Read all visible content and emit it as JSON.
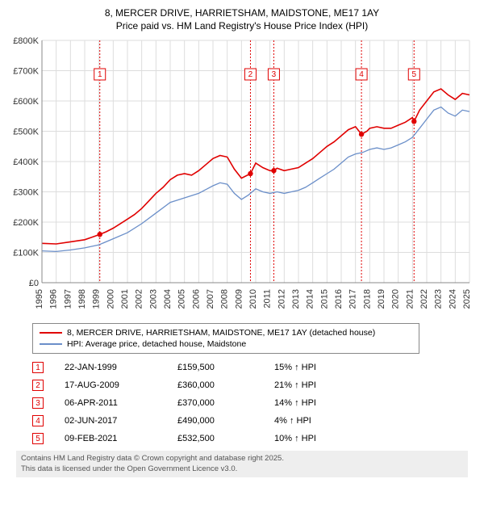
{
  "title": {
    "line1": "8, MERCER DRIVE, HARRIETSHAM, MAIDSTONE, ME17 1AY",
    "line2": "Price paid vs. HM Land Registry's House Price Index (HPI)"
  },
  "chart": {
    "type": "line",
    "background_color": "#ffffff",
    "grid_color": "#dddddd",
    "spine_color": "#888888",
    "x": {
      "years": [
        1995,
        1996,
        1997,
        1998,
        1999,
        2000,
        2001,
        2002,
        2003,
        2004,
        2005,
        2006,
        2007,
        2008,
        2009,
        2010,
        2011,
        2012,
        2013,
        2014,
        2015,
        2016,
        2017,
        2018,
        2019,
        2020,
        2021,
        2022,
        2023,
        2024,
        2025
      ],
      "label_fontsize": 11
    },
    "y": {
      "min": 0,
      "max": 800000,
      "tick_step": 100000,
      "tick_labels": [
        "£0",
        "£100K",
        "£200K",
        "£300K",
        "£400K",
        "£500K",
        "£600K",
        "£700K",
        "£800K"
      ],
      "label_fontsize": 11
    },
    "series_red": {
      "label": "8, MERCER DRIVE, HARRIETSHAM, MAIDSTONE, ME17 1AY (detached house)",
      "color": "#e00000",
      "line_width": 1.6,
      "points": [
        [
          1995,
          130000
        ],
        [
          1996,
          128000
        ],
        [
          1997,
          135000
        ],
        [
          1998,
          142000
        ],
        [
          1998.5,
          150000
        ],
        [
          1999.06,
          159500
        ],
        [
          1999.5,
          168000
        ],
        [
          2000,
          180000
        ],
        [
          2000.5,
          195000
        ],
        [
          2001,
          210000
        ],
        [
          2001.5,
          225000
        ],
        [
          2002,
          245000
        ],
        [
          2002.5,
          270000
        ],
        [
          2003,
          295000
        ],
        [
          2003.5,
          315000
        ],
        [
          2004,
          340000
        ],
        [
          2004.5,
          355000
        ],
        [
          2005,
          360000
        ],
        [
          2005.5,
          355000
        ],
        [
          2006,
          370000
        ],
        [
          2006.5,
          390000
        ],
        [
          2007,
          410000
        ],
        [
          2007.5,
          420000
        ],
        [
          2008,
          415000
        ],
        [
          2008.5,
          375000
        ],
        [
          2009,
          345000
        ],
        [
          2009.63,
          360000
        ],
        [
          2010,
          395000
        ],
        [
          2010.5,
          380000
        ],
        [
          2011,
          370000
        ],
        [
          2011.27,
          370000
        ],
        [
          2011.5,
          378000
        ],
        [
          2012,
          370000
        ],
        [
          2012.5,
          375000
        ],
        [
          2013,
          380000
        ],
        [
          2013.5,
          395000
        ],
        [
          2014,
          410000
        ],
        [
          2014.5,
          430000
        ],
        [
          2015,
          450000
        ],
        [
          2015.5,
          465000
        ],
        [
          2016,
          485000
        ],
        [
          2016.5,
          505000
        ],
        [
          2017,
          515000
        ],
        [
          2017.42,
          490000
        ],
        [
          2017.8,
          500000
        ],
        [
          2018,
          510000
        ],
        [
          2018.5,
          515000
        ],
        [
          2019,
          510000
        ],
        [
          2019.5,
          510000
        ],
        [
          2020,
          520000
        ],
        [
          2020.5,
          530000
        ],
        [
          2021,
          545000
        ],
        [
          2021.11,
          532500
        ],
        [
          2021.5,
          570000
        ],
        [
          2022,
          600000
        ],
        [
          2022.5,
          630000
        ],
        [
          2023,
          640000
        ],
        [
          2023.5,
          620000
        ],
        [
          2024,
          605000
        ],
        [
          2024.5,
          625000
        ],
        [
          2025,
          620000
        ]
      ]
    },
    "series_blue": {
      "label": "HPI: Average price, detached house, Maidstone",
      "color": "#6b8fc9",
      "line_width": 1.3,
      "points": [
        [
          1995,
          105000
        ],
        [
          1996,
          103000
        ],
        [
          1997,
          108000
        ],
        [
          1998,
          115000
        ],
        [
          1999,
          125000
        ],
        [
          2000,
          145000
        ],
        [
          2001,
          165000
        ],
        [
          2002,
          195000
        ],
        [
          2003,
          230000
        ],
        [
          2004,
          265000
        ],
        [
          2005,
          280000
        ],
        [
          2006,
          295000
        ],
        [
          2007,
          320000
        ],
        [
          2007.5,
          330000
        ],
        [
          2008,
          325000
        ],
        [
          2008.5,
          295000
        ],
        [
          2009,
          275000
        ],
        [
          2009.5,
          290000
        ],
        [
          2010,
          310000
        ],
        [
          2010.5,
          300000
        ],
        [
          2011,
          295000
        ],
        [
          2011.5,
          300000
        ],
        [
          2012,
          295000
        ],
        [
          2012.5,
          300000
        ],
        [
          2013,
          305000
        ],
        [
          2013.5,
          315000
        ],
        [
          2014,
          330000
        ],
        [
          2014.5,
          345000
        ],
        [
          2015,
          360000
        ],
        [
          2015.5,
          375000
        ],
        [
          2016,
          395000
        ],
        [
          2016.5,
          415000
        ],
        [
          2017,
          425000
        ],
        [
          2017.5,
          430000
        ],
        [
          2018,
          440000
        ],
        [
          2018.5,
          445000
        ],
        [
          2019,
          440000
        ],
        [
          2019.5,
          445000
        ],
        [
          2020,
          455000
        ],
        [
          2020.5,
          465000
        ],
        [
          2021,
          480000
        ],
        [
          2021.5,
          510000
        ],
        [
          2022,
          540000
        ],
        [
          2022.5,
          570000
        ],
        [
          2023,
          580000
        ],
        [
          2023.5,
          560000
        ],
        [
          2024,
          550000
        ],
        [
          2024.5,
          570000
        ],
        [
          2025,
          565000
        ]
      ]
    },
    "markers": [
      {
        "n": "1",
        "year": 1999.06,
        "box_y": 0.86
      },
      {
        "n": "2",
        "year": 2009.63,
        "box_y": 0.86
      },
      {
        "n": "3",
        "year": 2011.27,
        "box_y": 0.86
      },
      {
        "n": "4",
        "year": 2017.42,
        "box_y": 0.86
      },
      {
        "n": "5",
        "year": 2021.11,
        "box_y": 0.86
      }
    ],
    "marker_color": "#e00000"
  },
  "legend": {
    "rows": [
      {
        "color": "#e00000",
        "text": "8, MERCER DRIVE, HARRIETSHAM, MAIDSTONE, ME17 1AY (detached house)"
      },
      {
        "color": "#6b8fc9",
        "text": "HPI: Average price, detached house, Maidstone"
      }
    ]
  },
  "table": {
    "rows": [
      {
        "n": "1",
        "date": "22-JAN-1999",
        "price": "£159,500",
        "pct": "15% ↑ HPI"
      },
      {
        "n": "2",
        "date": "17-AUG-2009",
        "price": "£360,000",
        "pct": "21% ↑ HPI"
      },
      {
        "n": "3",
        "date": "06-APR-2011",
        "price": "£370,000",
        "pct": "14% ↑ HPI"
      },
      {
        "n": "4",
        "date": "02-JUN-2017",
        "price": "£490,000",
        "pct": "4% ↑ HPI"
      },
      {
        "n": "5",
        "date": "09-FEB-2021",
        "price": "£532,500",
        "pct": "10% ↑ HPI"
      }
    ]
  },
  "footnote": {
    "line1": "Contains HM Land Registry data © Crown copyright and database right 2025.",
    "line2": "This data is licensed under the Open Government Licence v3.0."
  }
}
